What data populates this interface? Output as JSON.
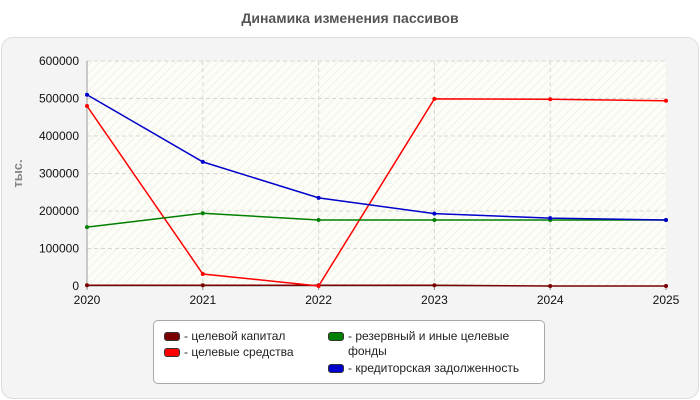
{
  "chart_data": {
    "type": "line",
    "title": "Динамика изменения пассивов",
    "ylabel": "тыс.",
    "xlabel": "",
    "x": [
      "2020",
      "2021",
      "2022",
      "2023",
      "2024",
      "2025"
    ],
    "ylim": [
      0,
      600000
    ],
    "yticks": [
      "0",
      "100000",
      "200000",
      "300000",
      "400000",
      "500000",
      "600000"
    ],
    "grid": true,
    "legend_position": "bottom",
    "series": [
      {
        "name": "целевой капитал",
        "color": "#7a0000",
        "values": [
          2000,
          2000,
          2000,
          2000,
          0,
          0
        ]
      },
      {
        "name": "целевые средства",
        "color": "#ff0000",
        "values": [
          480000,
          32000,
          0,
          499000,
          498000,
          494000
        ]
      },
      {
        "name": "резервный и иные целевые фонды",
        "color": "#008000",
        "values": [
          157000,
          194000,
          176000,
          176000,
          176000,
          176000
        ]
      },
      {
        "name": "кредиторская задолженность",
        "color": "#0000cc",
        "values": [
          510000,
          331000,
          235000,
          193000,
          181000,
          176000
        ]
      }
    ]
  }
}
